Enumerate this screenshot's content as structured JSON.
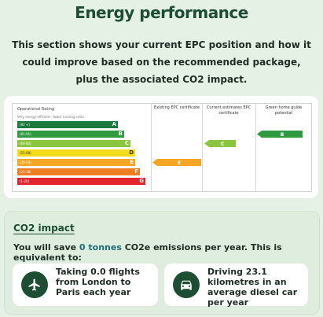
{
  "header": {
    "title": "Energy performance",
    "intro": "This section shows your current EPC position and how it could improve based on the recommended package, plus the associated CO2 impact."
  },
  "epc_chart": {
    "operational_rating_label": "Operational Rating",
    "scale_note": "Very energy efficient - lower running costs",
    "columns": [
      {
        "label": "Existing EPC certificate"
      },
      {
        "label": "Current estimates EPC certificate"
      },
      {
        "label": "Green home guide potential"
      }
    ],
    "bands": [
      {
        "range": "(92 +)",
        "letter": "A",
        "color": "#1c7a3c"
      },
      {
        "range": "(81-91)",
        "letter": "B",
        "color": "#2f9a3f"
      },
      {
        "range": "(69-80)",
        "letter": "C",
        "color": "#8cc63f"
      },
      {
        "range": "(55-68)",
        "letter": "D",
        "color": "#f4dc1a"
      },
      {
        "range": "(39-54)",
        "letter": "E",
        "color": "#f5a623"
      },
      {
        "range": "(21-38)",
        "letter": "F",
        "color": "#ef7d22"
      },
      {
        "range": "(1-20)",
        "letter": "G",
        "color": "#e3262e"
      }
    ],
    "ratings": [
      {
        "column": "Existing EPC certificate",
        "letter": "E",
        "color": "#f5a623"
      },
      {
        "column": "Current estimates EPC certificate",
        "letter": "C",
        "color": "#8cc63f"
      },
      {
        "column": "Green home guide potential",
        "letter": "B",
        "color": "#2f9a3f"
      }
    ]
  },
  "co2": {
    "heading": "CO2 impact",
    "summary_prefix": "You will save ",
    "summary_value": "0 tonnes",
    "summary_suffix": " CO2e emissions per year. This is equivalent to:",
    "equivalents": [
      {
        "icon": "airplane-icon",
        "text": "Taking 0.0 flights from London to Paris each year"
      },
      {
        "icon": "car-icon",
        "text": "Driving 23.1 kilometres in an average diesel car per year"
      }
    ]
  }
}
